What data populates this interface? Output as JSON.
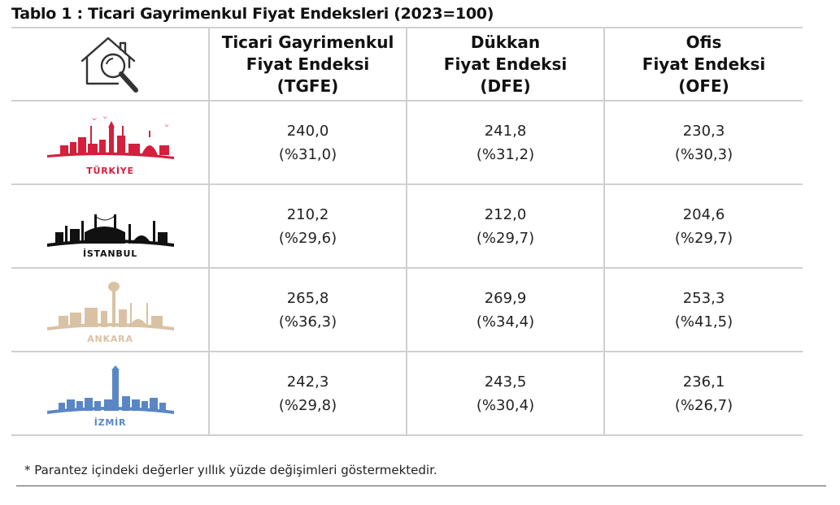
{
  "title": "Tablo 1 : Ticari Gayrimenkul Fiyat Endeksleri (2023=100)",
  "header_icon": "house-magnifier-icon",
  "columns": [
    {
      "line1": "Ticari Gayrimenkul",
      "line2": "Fiyat Endeksi",
      "line3": "(TGFE)"
    },
    {
      "line1": "Dükkan",
      "line2": "Fiyat Endeksi",
      "line3": "(DFE)"
    },
    {
      "line1": "Ofis",
      "line2": "Fiyat Endeksi",
      "line3": "(OFE)"
    }
  ],
  "rows": [
    {
      "region": "TÜRKİYE",
      "color": "#d51f3d",
      "icon": "turkiye-skyline-icon",
      "tgfe": {
        "index": "240,0",
        "change": "(%31,0)"
      },
      "dfe": {
        "index": "241,8",
        "change": "(%31,2)"
      },
      "ofe": {
        "index": "230,3",
        "change": "(%30,3)"
      }
    },
    {
      "region": "İSTANBUL",
      "color": "#111111",
      "icon": "istanbul-skyline-icon",
      "tgfe": {
        "index": "210,2",
        "change": "(%29,6)"
      },
      "dfe": {
        "index": "212,0",
        "change": "(%29,7)"
      },
      "ofe": {
        "index": "204,6",
        "change": "(%29,7)"
      }
    },
    {
      "region": "ANKARA",
      "color": "#d9c2a4",
      "icon": "ankara-skyline-icon",
      "tgfe": {
        "index": "265,8",
        "change": "(%36,3)"
      },
      "dfe": {
        "index": "269,9",
        "change": "(%34,4)"
      },
      "ofe": {
        "index": "253,3",
        "change": "(%41,5)"
      }
    },
    {
      "region": "İZMİR",
      "color": "#5a86c6",
      "icon": "izmir-skyline-icon",
      "tgfe": {
        "index": "242,3",
        "change": "(%29,8)"
      },
      "dfe": {
        "index": "243,5",
        "change": "(%30,4)"
      },
      "ofe": {
        "index": "236,1",
        "change": "(%26,7)"
      }
    }
  ],
  "footnote": "* Parantez içindeki değerler yıllık yüzde değişimleri göstermektedir."
}
